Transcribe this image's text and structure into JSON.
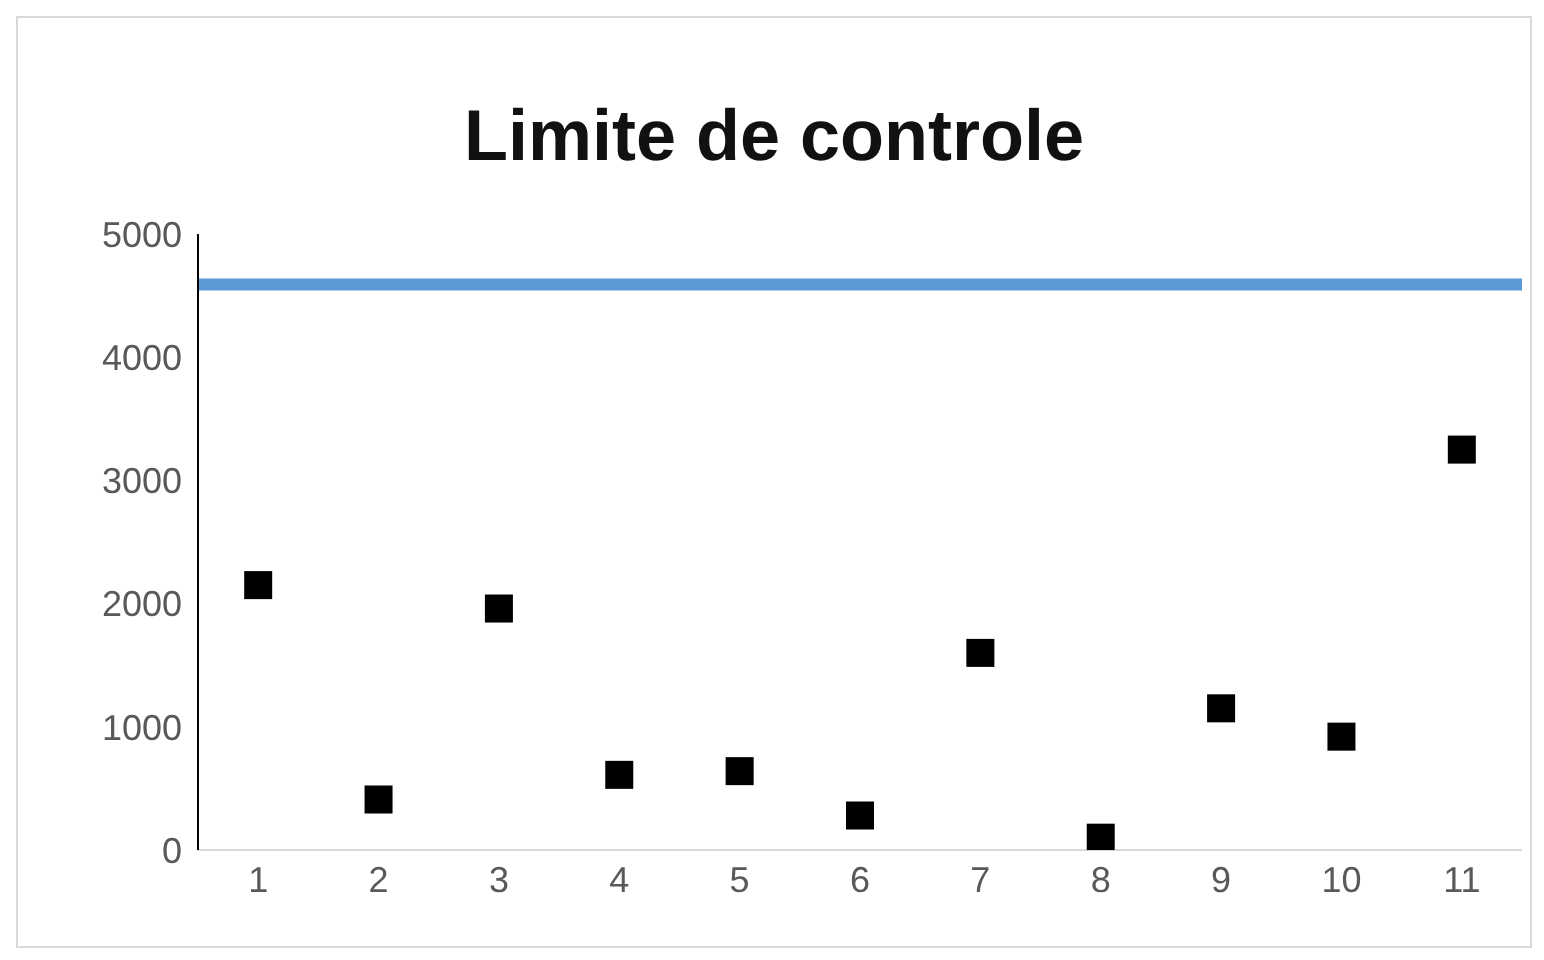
{
  "chart_data": {
    "type": "scatter",
    "title": "Limite de controle",
    "categories": [
      "1",
      "2",
      "3",
      "4",
      "5",
      "6",
      "7",
      "8",
      "9",
      "10",
      "11"
    ],
    "series": [
      {
        "color": "#000000",
        "values": [
          2150,
          410,
          1960,
          610,
          640,
          280,
          1600,
          100,
          1150,
          920,
          3250
        ]
      }
    ],
    "ylim": [
      0,
      5000
    ],
    "yticks": [
      0,
      1000,
      2000,
      3000,
      4000,
      5000
    ],
    "ref_lines": [
      {
        "axis": "y",
        "value": 4590,
        "color": "#5b9bd5",
        "line_style": "solid"
      }
    ],
    "marker": "square",
    "grid": false
  }
}
